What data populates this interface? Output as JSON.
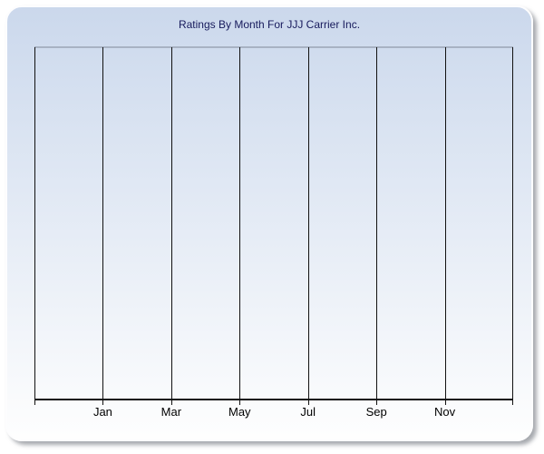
{
  "chart": {
    "title": "Ratings By Month For JJJ Carrier Inc."
  },
  "chart_data": {
    "type": "line",
    "title": "Ratings By Month For JJJ Carrier Inc.",
    "x_tick_labels": [
      "Jan",
      "Mar",
      "May",
      "Jul",
      "Sep",
      "Nov"
    ],
    "x_months_per_gridline": 2,
    "series": [],
    "xlabel": "",
    "ylabel": "",
    "y_tick_labels": [],
    "legend": "none",
    "grid": "vertical gridlines only (8 lines including plot edges); plot area is empty, no data series plotted"
  },
  "colors": {
    "card_gradient_top": "#cbd8ec",
    "card_gradient_mid": "#d8e2f1",
    "card_gradient_bottom": "#fefefe",
    "plot_border_top": "#a8b2c3",
    "gridline": "#111111",
    "axis": "#111111",
    "label_text": "#000000",
    "title_text": "#171a5c"
  }
}
